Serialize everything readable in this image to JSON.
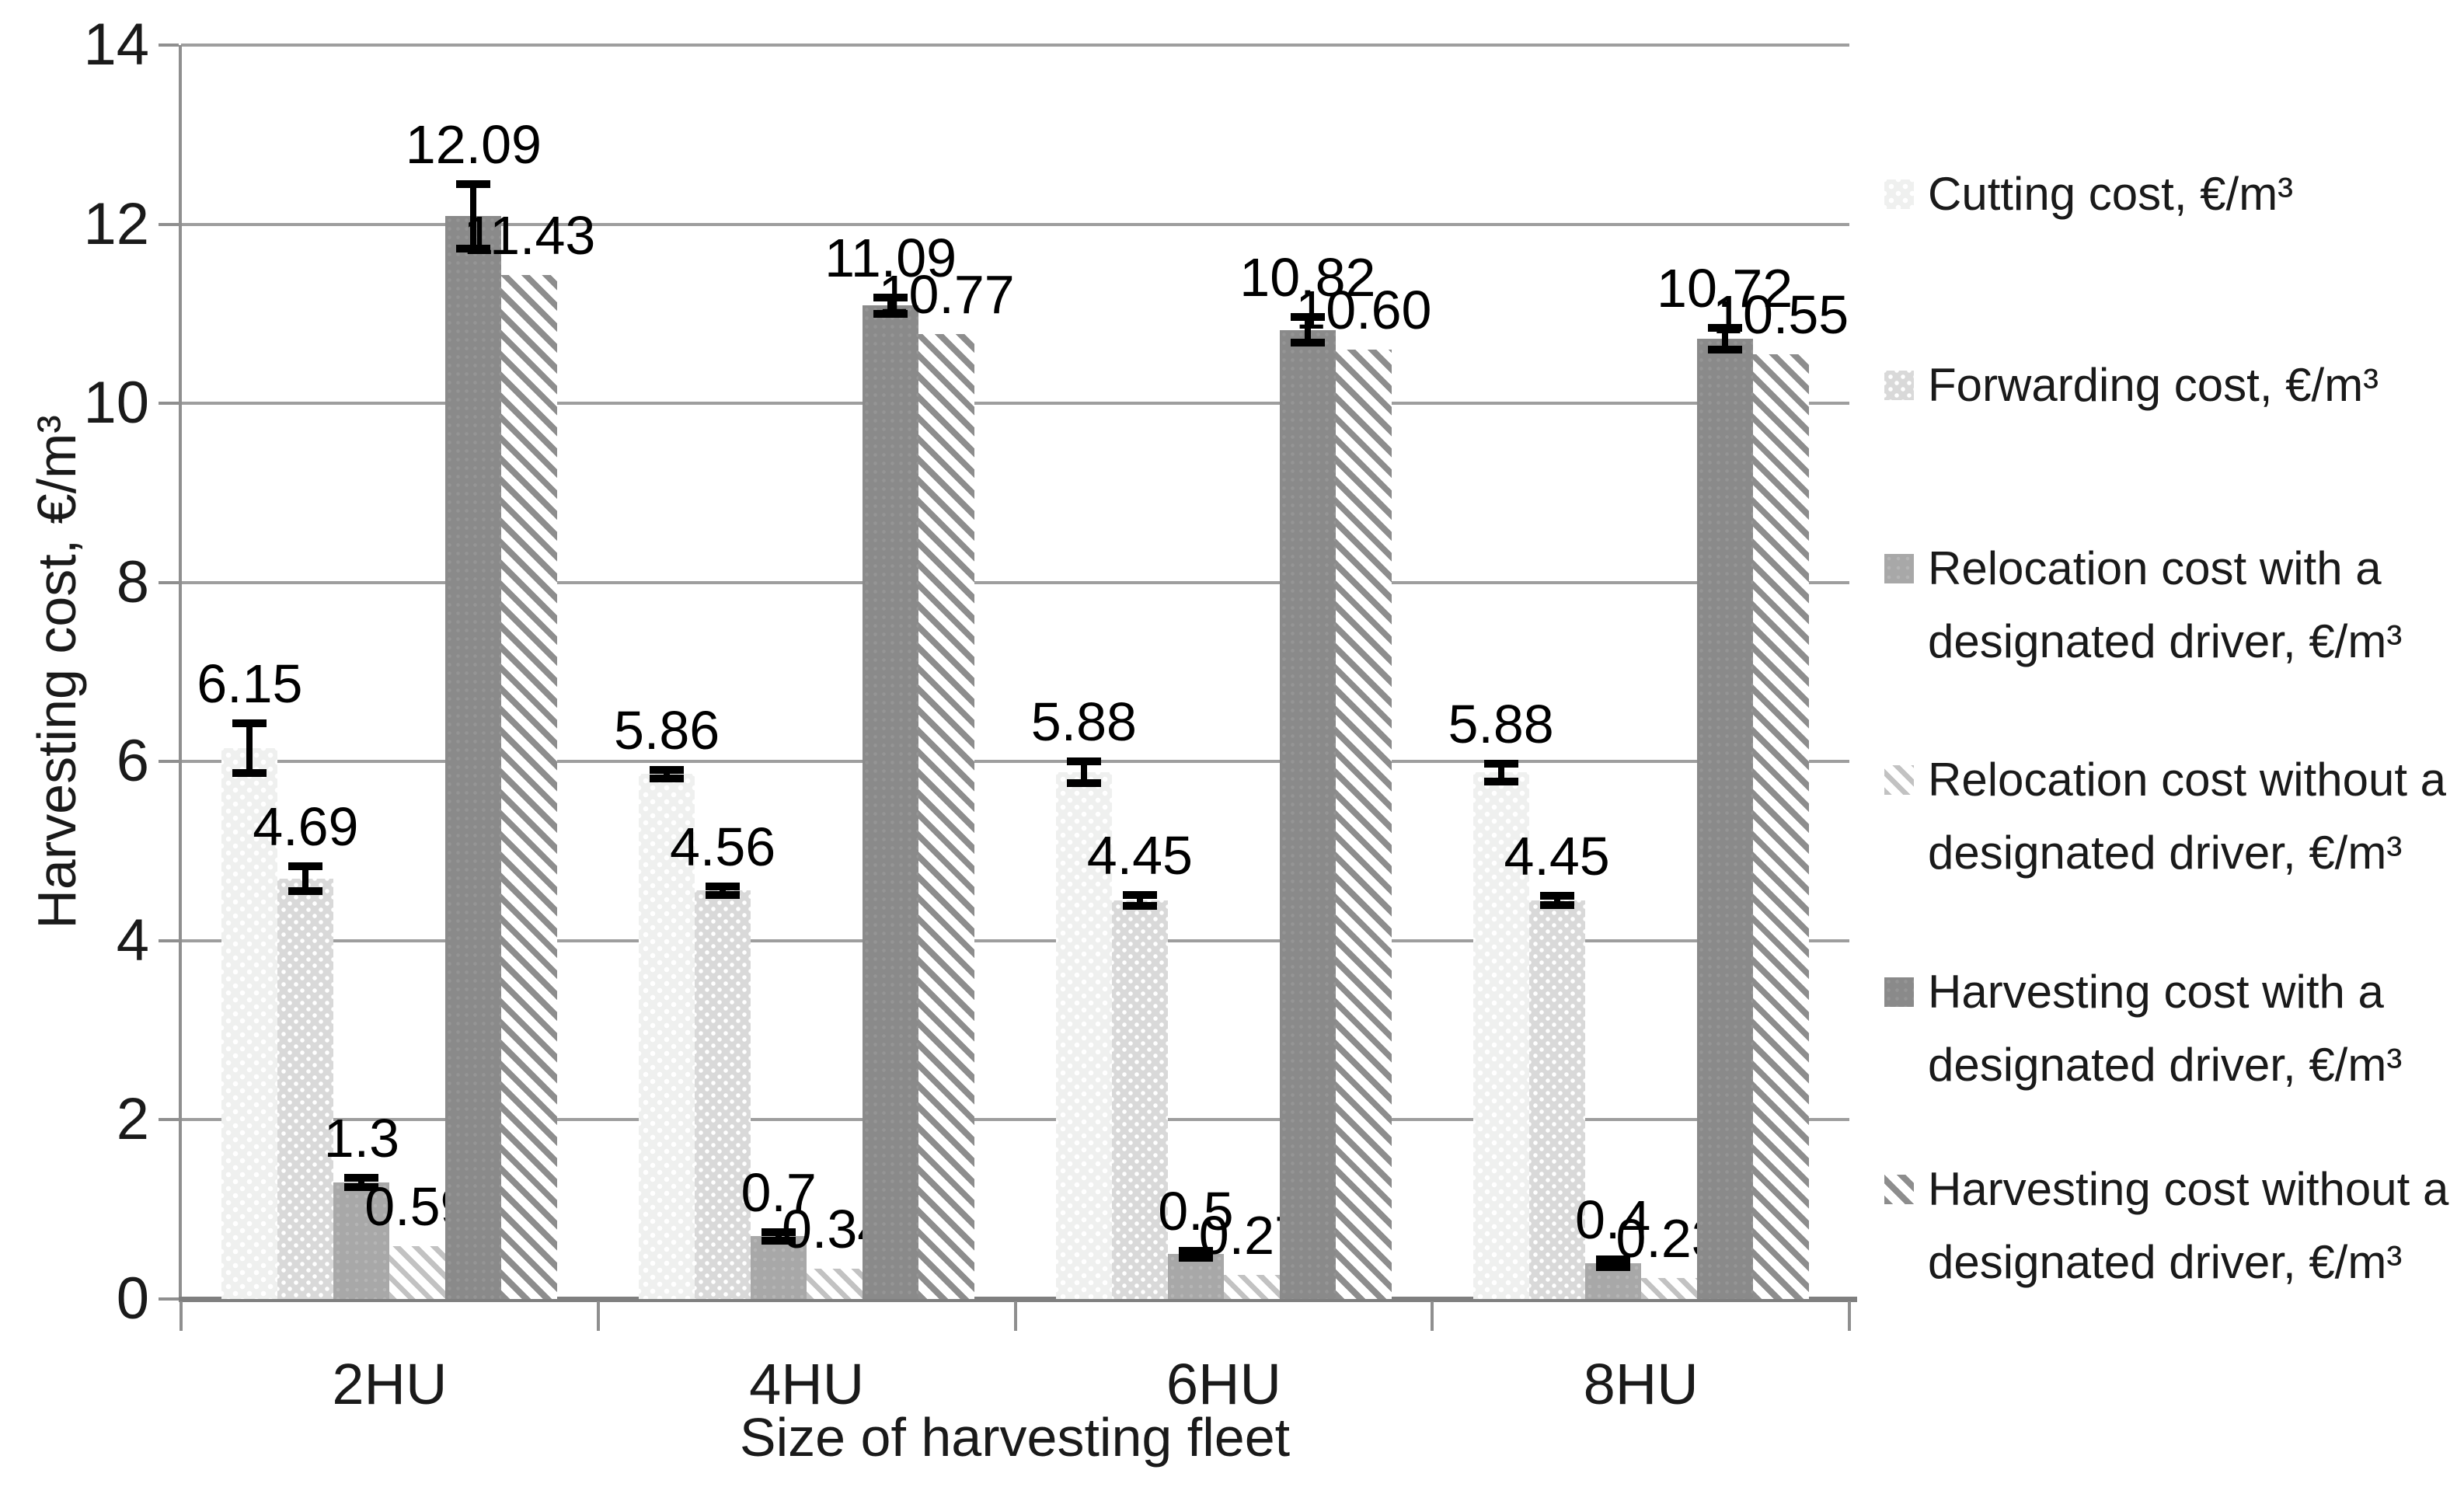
{
  "chart_data": {
    "type": "bar",
    "title": "",
    "xlabel": "Size of harvesting fleet",
    "ylabel": "Harvesting cost, €/m³",
    "categories": [
      "2HU",
      "4HU",
      "6HU",
      "8HU"
    ],
    "y_axis": {
      "min": 0,
      "max": 14,
      "step": 2,
      "tick_labels": [
        "0",
        "2",
        "4",
        "6",
        "8",
        "10",
        "12",
        "14"
      ]
    },
    "grid": true,
    "legend_position": "right",
    "series": [
      {
        "key": "cutting",
        "name": "Cutting cost, €/m³",
        "legend_line1": "Cutting cost, €/m³",
        "legend_line2": "",
        "pattern": "dots-lightest",
        "values": [
          6.15,
          5.86,
          5.88,
          5.88
        ],
        "labels": [
          "6.15",
          "5.86",
          "5.88",
          "5.88"
        ],
        "errors": [
          0.28,
          0.05,
          0.12,
          0.1
        ]
      },
      {
        "key": "forwarding",
        "name": "Forwarding cost, €/m³",
        "legend_line1": "Forwarding cost, €/m³",
        "legend_line2": "",
        "pattern": "dots-light",
        "values": [
          4.69,
          4.56,
          4.45,
          4.45
        ],
        "labels": [
          "4.69",
          "4.56",
          "4.45",
          "4.45"
        ],
        "errors": [
          0.14,
          0.05,
          0.06,
          0.05
        ]
      },
      {
        "key": "relocation-with",
        "name": "Relocation cost with a designated driver, €/m³",
        "legend_line1": "Relocation cost with a",
        "legend_line2": "designated driver, €/m³",
        "pattern": "solid-medium",
        "values": [
          1.3,
          0.7,
          0.5,
          0.4
        ],
        "labels": [
          "1.3",
          "0.7",
          "0.5",
          "0.4"
        ],
        "errors": [
          0.05,
          0.05,
          0.04,
          0.04
        ]
      },
      {
        "key": "relocation-without",
        "name": "Relocation cost without a designated driver, €/m³",
        "legend_line1": "Relocation cost without a",
        "legend_line2": "designated driver, €/m³",
        "pattern": "hatch-light",
        "values": [
          0.59,
          0.34,
          0.27,
          0.23
        ],
        "labels": [
          "0.59",
          "0.34",
          "0.27",
          "0.23"
        ],
        "errors": null
      },
      {
        "key": "harvesting-with",
        "name": "Harvesting cost with a designated driver, €/m³",
        "legend_line1": "Harvesting cost with a",
        "legend_line2": "designated driver, €/m³",
        "pattern": "solid-dark",
        "values": [
          12.09,
          11.09,
          10.82,
          10.72
        ],
        "labels": [
          "12.09",
          "11.09",
          "10.82",
          "10.72"
        ],
        "errors": [
          0.36,
          0.09,
          0.14,
          0.12
        ]
      },
      {
        "key": "harvesting-without",
        "name": "Harvesting cost without a designated driver, €/m³",
        "legend_line1": "Harvesting cost without a",
        "legend_line2": "designated driver, €/m³",
        "pattern": "hatch-dark",
        "values": [
          11.43,
          10.77,
          10.6,
          10.55
        ],
        "labels": [
          "11.43",
          "10.77",
          "10.60",
          "10.55"
        ],
        "errors": null
      }
    ],
    "colors": {
      "bar_lightest": "#eff0ef",
      "bar_light": "#d9d9d9",
      "bar_medium": "#a8a8a8",
      "bar_dark": "#8a8a8a",
      "hatch_light": "#c2c2c2",
      "hatch_dark": "#8d8d8d",
      "gridline": "#9e9e9e",
      "axis": "#7f7f7f",
      "error_bar": "#000000",
      "text": "#1a1a1a"
    }
  }
}
